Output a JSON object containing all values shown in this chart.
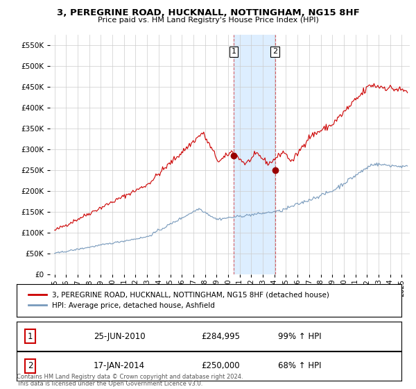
{
  "title": "3, PEREGRINE ROAD, HUCKNALL, NOTTINGHAM, NG15 8HF",
  "subtitle": "Price paid vs. HM Land Registry's House Price Index (HPI)",
  "red_label": "3, PEREGRINE ROAD, HUCKNALL, NOTTINGHAM, NG15 8HF (detached house)",
  "blue_label": "HPI: Average price, detached house, Ashfield",
  "annotation1": {
    "num": "1",
    "date": "25-JUN-2010",
    "price": "£284,995",
    "pct": "99% ↑ HPI"
  },
  "annotation2": {
    "num": "2",
    "date": "17-JAN-2014",
    "price": "£250,000",
    "pct": "68% ↑ HPI"
  },
  "footer": "Contains HM Land Registry data © Crown copyright and database right 2024.\nThis data is licensed under the Open Government Licence v3.0.",
  "ylim": [
    0,
    575000
  ],
  "yticks": [
    0,
    50000,
    100000,
    150000,
    200000,
    250000,
    300000,
    350000,
    400000,
    450000,
    500000,
    550000
  ],
  "red_color": "#cc0000",
  "blue_color": "#7799bb",
  "highlight_color": "#ddeeff",
  "vline_color": "#cc0000",
  "background_color": "#ffffff",
  "grid_color": "#cccccc",
  "sale1_x": 2010.48,
  "sale1_y": 284995,
  "sale2_x": 2014.05,
  "sale2_y": 250000,
  "xmin": 1995.0,
  "xmax": 2025.5
}
